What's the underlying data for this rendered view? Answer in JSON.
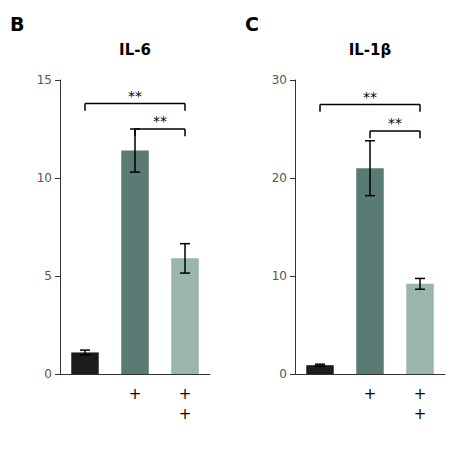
{
  "chart_data": [
    {
      "type": "bar",
      "title": "IL-6",
      "panel_label": "B",
      "categories": [
        null,
        null,
        null
      ],
      "values": [
        1.1,
        11.4,
        5.9
      ],
      "errors": [
        0.12,
        1.1,
        0.75
      ],
      "colors": [
        "#1c1c1c",
        "#5a7a74",
        "#9ab5ac"
      ],
      "ylim": [
        0,
        15
      ],
      "yticks": [
        0,
        5,
        10,
        15
      ],
      "grid": false,
      "brackets": [
        {
          "from": 0,
          "to": 2,
          "y": 13.8,
          "label": "**"
        },
        {
          "from": 1,
          "to": 2,
          "y": 12.5,
          "label": "**"
        }
      ],
      "plus_rows": [
        [
          null,
          "+",
          "+"
        ],
        [
          null,
          null,
          "+"
        ]
      ]
    },
    {
      "type": "bar",
      "title": "IL-1β",
      "panel_label": "C",
      "categories": [
        null,
        null,
        null
      ],
      "values": [
        0.9,
        21.0,
        9.2
      ],
      "errors": [
        0.1,
        2.8,
        0.55
      ],
      "colors": [
        "#1c1c1c",
        "#5a7a74",
        "#9ab5ac"
      ],
      "ylim": [
        0,
        30
      ],
      "yticks": [
        0,
        10,
        20,
        30
      ],
      "grid": false,
      "brackets": [
        {
          "from": 0,
          "to": 2,
          "y": 27.5,
          "label": "**"
        },
        {
          "from": 1,
          "to": 2,
          "y": 24.8,
          "label": "**"
        }
      ],
      "plus_rows": [
        [
          null,
          "+",
          "+"
        ],
        [
          null,
          null,
          "+"
        ]
      ]
    }
  ]
}
